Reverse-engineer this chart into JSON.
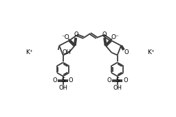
{
  "bg_color": "#ffffff",
  "line_color": "#3a3a3a",
  "lw": 1.3,
  "text_color": "#000000",
  "figsize": [
    2.56,
    1.71
  ],
  "dpi": 100,
  "xlim": [
    0,
    256
  ],
  "ylim": [
    0,
    171
  ]
}
